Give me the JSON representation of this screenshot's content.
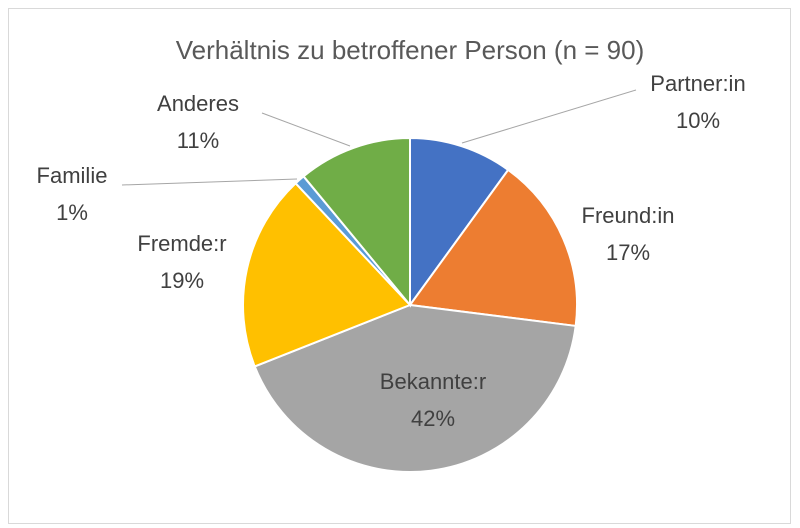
{
  "chart_data": {
    "type": "pie",
    "title": "Verhältnis zu betroffener Person (n = 90)",
    "categories": [
      "Partner:in",
      "Freund:in",
      "Bekannte:r",
      "Fremde:r",
      "Familie",
      "Anderes"
    ],
    "values": [
      10,
      17,
      42,
      19,
      1,
      11
    ],
    "value_labels": [
      "10%",
      "17%",
      "42%",
      "19%",
      "1%",
      "11%"
    ],
    "colors": [
      "#4472c4",
      "#ed7d31",
      "#a5a5a5",
      "#ffc000",
      "#5b9bd5",
      "#70ad47"
    ]
  }
}
